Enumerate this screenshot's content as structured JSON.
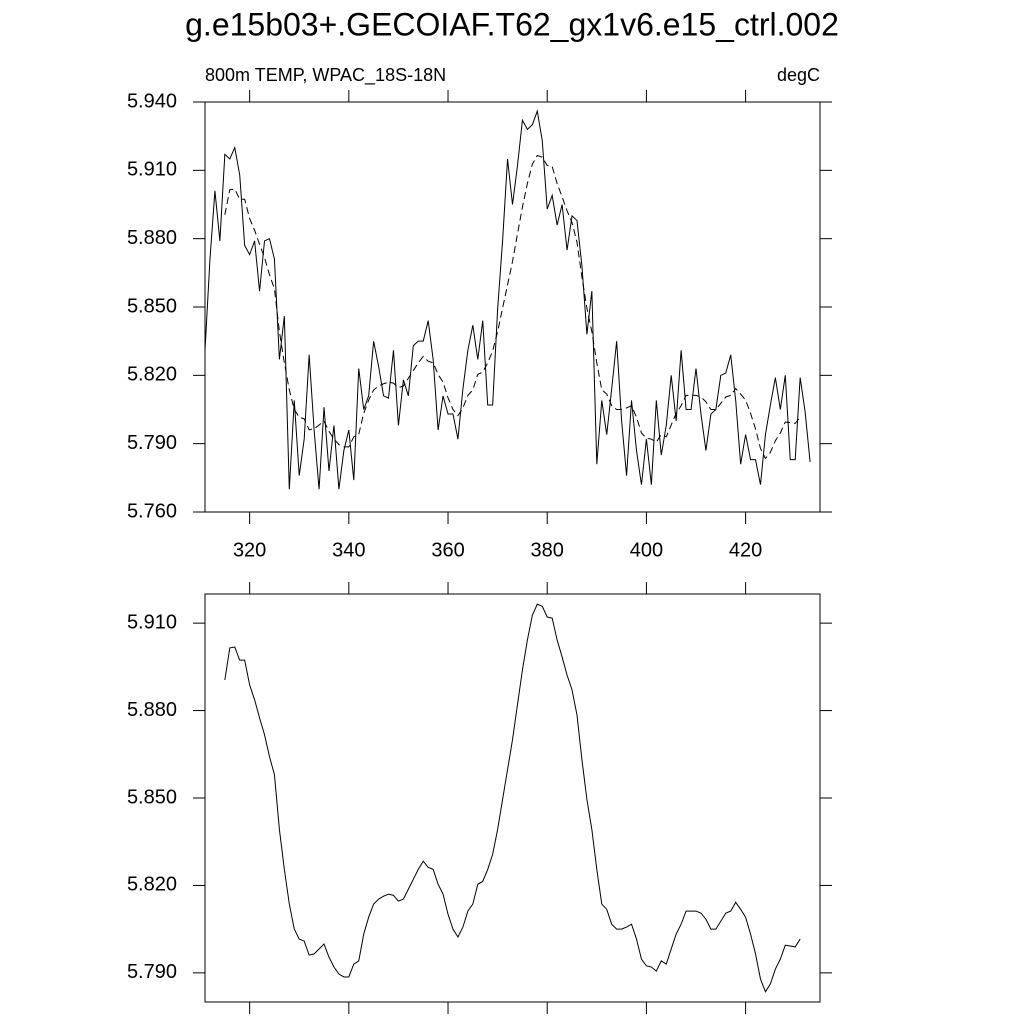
{
  "chart_data": [
    {
      "type": "line",
      "title": "g.e15b03+.GECOIAF.T62_gx1v6.e15_ctrl.002",
      "subtitle_left": "800m TEMP, WPAC_18S-18N",
      "subtitle_right": "degC",
      "xlim": [
        311,
        435
      ],
      "xticks": [
        320,
        340,
        360,
        380,
        400,
        420
      ],
      "xtick_labels": true,
      "ylim": [
        5.76,
        5.94
      ],
      "yticks": [
        {
          "value": 5.76,
          "label": "5.760"
        },
        {
          "value": 5.79,
          "label": "5.790"
        },
        {
          "value": 5.82,
          "label": "5.820"
        },
        {
          "value": 5.85,
          "label": "5.850"
        },
        {
          "value": 5.88,
          "label": "5.880"
        },
        {
          "value": 5.91,
          "label": "5.910"
        },
        {
          "value": 5.94,
          "label": "5.940"
        }
      ],
      "series": [
        {
          "color": "#000000",
          "style": "solid",
          "x": [
            311,
            312,
            313,
            314,
            315,
            316,
            317,
            318,
            319,
            320,
            321,
            322,
            323,
            324,
            325,
            326,
            327,
            328,
            329,
            330,
            331,
            332,
            333,
            334,
            335,
            336,
            337,
            338,
            339,
            340,
            341,
            342,
            343,
            344,
            345,
            346,
            347,
            348,
            349,
            350,
            351,
            352,
            353,
            354,
            355,
            356,
            357,
            358,
            359,
            360,
            361,
            362,
            363,
            364,
            365,
            366,
            367,
            368,
            369,
            370,
            371,
            372,
            373,
            374,
            375,
            376,
            377,
            378,
            379,
            380,
            381,
            382,
            383,
            384,
            385,
            386,
            387,
            388,
            389,
            390,
            391,
            392,
            393,
            394,
            395,
            396,
            397,
            398,
            399,
            400,
            401,
            402,
            403,
            404,
            405,
            406,
            407,
            408,
            409,
            410,
            411,
            412,
            413,
            414,
            415,
            416,
            417,
            418,
            419,
            420,
            421,
            422,
            423,
            424,
            425,
            426,
            427,
            428,
            429,
            430,
            431,
            432,
            433
          ],
          "values": [
            5.831,
            5.871,
            5.901,
            5.879,
            5.917,
            5.915,
            5.92,
            5.908,
            5.877,
            5.873,
            5.879,
            5.857,
            5.879,
            5.88,
            5.871,
            5.827,
            5.846,
            5.77,
            5.809,
            5.776,
            5.792,
            5.829,
            5.796,
            5.77,
            5.806,
            5.778,
            5.798,
            5.77,
            5.787,
            5.796,
            5.774,
            5.823,
            5.805,
            5.811,
            5.835,
            5.824,
            5.811,
            5.81,
            5.831,
            5.798,
            5.818,
            5.811,
            5.833,
            5.835,
            5.835,
            5.844,
            5.827,
            5.796,
            5.811,
            5.803,
            5.803,
            5.792,
            5.814,
            5.831,
            5.842,
            5.827,
            5.844,
            5.807,
            5.807,
            5.849,
            5.879,
            5.915,
            5.895,
            5.912,
            5.932,
            5.928,
            5.93,
            5.936,
            5.923,
            5.893,
            5.899,
            5.886,
            5.895,
            5.875,
            5.89,
            5.888,
            5.868,
            5.838,
            5.857,
            5.781,
            5.809,
            5.794,
            5.814,
            5.835,
            5.8,
            5.776,
            5.809,
            5.787,
            5.772,
            5.792,
            5.772,
            5.809,
            5.785,
            5.798,
            5.82,
            5.8,
            5.831,
            5.805,
            5.805,
            5.823,
            5.803,
            5.787,
            5.803,
            5.805,
            5.82,
            5.821,
            5.829,
            5.809,
            5.781,
            5.794,
            5.783,
            5.783,
            5.772,
            5.794,
            5.807,
            5.819,
            5.805,
            5.82,
            5.783,
            5.783,
            5.819,
            5.804,
            5.782
          ]
        },
        {
          "color": "#000000",
          "style": "dashed",
          "x": [
            315,
            316,
            317,
            318,
            319,
            320,
            321,
            322,
            323,
            324,
            325,
            326,
            327,
            328,
            329,
            330,
            331,
            332,
            333,
            334,
            335,
            336,
            337,
            338,
            339,
            340,
            341,
            342,
            343,
            344,
            345,
            346,
            347,
            348,
            349,
            350,
            351,
            352,
            353,
            354,
            355,
            356,
            357,
            358,
            359,
            360,
            361,
            362,
            363,
            364,
            365,
            366,
            367,
            368,
            369,
            370,
            371,
            372,
            373,
            374,
            375,
            376,
            377,
            378,
            379,
            380,
            381,
            382,
            383,
            384,
            385,
            386,
            387,
            388,
            389,
            390,
            391,
            392,
            393,
            394,
            395,
            396,
            397,
            398,
            399,
            400,
            401,
            402,
            403,
            404,
            405,
            406,
            407,
            408,
            409,
            410,
            411,
            412,
            413,
            414,
            415,
            416,
            417,
            418,
            419,
            420,
            421,
            422,
            423,
            424,
            425,
            426,
            427,
            428,
            429,
            430,
            431
          ],
          "values": [
            5.8905,
            5.9015,
            5.9018,
            5.8973,
            5.8973,
            5.8888,
            5.8837,
            5.8775,
            5.8717,
            5.8642,
            5.858,
            5.8392,
            5.8255,
            5.8136,
            5.805,
            5.8016,
            5.8009,
            5.7961,
            5.7965,
            5.7982,
            5.7999,
            5.7954,
            5.792,
            5.7896,
            5.7886,
            5.7886,
            5.793,
            5.7941,
            5.8033,
            5.8091,
            5.8136,
            5.8153,
            5.8163,
            5.817,
            5.8166,
            5.8146,
            5.8153,
            5.8187,
            5.8221,
            5.8255,
            5.8283,
            5.8262,
            5.8255,
            5.8204,
            5.817,
            5.8101,
            5.805,
            5.8023,
            5.8057,
            5.8112,
            5.8136,
            5.8204,
            5.8214,
            5.8255,
            5.8307,
            5.8392,
            5.8495,
            5.8597,
            5.87,
            5.882,
            5.8939,
            5.9042,
            5.9127,
            5.9165,
            5.9158,
            5.9121,
            5.9117,
            5.9042,
            5.8984,
            5.8922,
            5.8871,
            5.8785,
            5.8631,
            5.8495,
            5.8392,
            5.8255,
            5.8136,
            5.8118,
            5.8067,
            5.805,
            5.805,
            5.8057,
            5.8067,
            5.8016,
            5.7947,
            5.7924,
            5.792,
            5.7906,
            5.7941,
            5.793,
            5.7982,
            5.8033,
            5.8067,
            5.8112,
            5.8112,
            5.8112,
            5.8105,
            5.8084,
            5.805,
            5.805,
            5.8077,
            5.8105,
            5.8112,
            5.8142,
            5.8118,
            5.8091,
            5.8033,
            5.7965,
            5.7879,
            5.7835,
            5.7862,
            5.7913,
            5.7947,
            5.7995,
            5.7992,
            5.7989,
            5.8016
          ]
        }
      ]
    },
    {
      "type": "line",
      "xlim": [
        311,
        435
      ],
      "xticks": [
        320,
        340,
        360,
        380,
        400,
        420
      ],
      "xtick_labels": false,
      "ylim": [
        5.78,
        5.92
      ],
      "yticks": [
        {
          "value": 5.79,
          "label": "5.790"
        },
        {
          "value": 5.82,
          "label": "5.820"
        },
        {
          "value": 5.85,
          "label": "5.850"
        },
        {
          "value": 5.88,
          "label": "5.880"
        },
        {
          "value": 5.91,
          "label": "5.910"
        }
      ],
      "series": [
        {
          "color": "#000000",
          "style": "solid",
          "x": [
            315,
            316,
            317,
            318,
            319,
            320,
            321,
            322,
            323,
            324,
            325,
            326,
            327,
            328,
            329,
            330,
            331,
            332,
            333,
            334,
            335,
            336,
            337,
            338,
            339,
            340,
            341,
            342,
            343,
            344,
            345,
            346,
            347,
            348,
            349,
            350,
            351,
            352,
            353,
            354,
            355,
            356,
            357,
            358,
            359,
            360,
            361,
            362,
            363,
            364,
            365,
            366,
            367,
            368,
            369,
            370,
            371,
            372,
            373,
            374,
            375,
            376,
            377,
            378,
            379,
            380,
            381,
            382,
            383,
            384,
            385,
            386,
            387,
            388,
            389,
            390,
            391,
            392,
            393,
            394,
            395,
            396,
            397,
            398,
            399,
            400,
            401,
            402,
            403,
            404,
            405,
            406,
            407,
            408,
            409,
            410,
            411,
            412,
            413,
            414,
            415,
            416,
            417,
            418,
            419,
            420,
            421,
            422,
            423,
            424,
            425,
            426,
            427,
            428,
            429,
            430,
            431
          ],
          "values": [
            5.8905,
            5.9015,
            5.9018,
            5.8973,
            5.8973,
            5.8888,
            5.8837,
            5.8775,
            5.8717,
            5.8642,
            5.858,
            5.8392,
            5.8255,
            5.8136,
            5.805,
            5.8016,
            5.8009,
            5.7961,
            5.7965,
            5.7982,
            5.7999,
            5.7954,
            5.792,
            5.7896,
            5.7886,
            5.7886,
            5.793,
            5.7941,
            5.8033,
            5.8091,
            5.8136,
            5.8153,
            5.8163,
            5.817,
            5.8166,
            5.8146,
            5.8153,
            5.8187,
            5.8221,
            5.8255,
            5.8283,
            5.8262,
            5.8255,
            5.8204,
            5.817,
            5.8101,
            5.805,
            5.8023,
            5.8057,
            5.8112,
            5.8136,
            5.8204,
            5.8214,
            5.8255,
            5.8307,
            5.8392,
            5.8495,
            5.8597,
            5.87,
            5.882,
            5.8939,
            5.9042,
            5.9127,
            5.9165,
            5.9158,
            5.9121,
            5.9117,
            5.9042,
            5.8984,
            5.8922,
            5.8871,
            5.8785,
            5.8631,
            5.8495,
            5.8392,
            5.8255,
            5.8136,
            5.8118,
            5.8067,
            5.805,
            5.805,
            5.8057,
            5.8067,
            5.8016,
            5.7947,
            5.7924,
            5.792,
            5.7906,
            5.7941,
            5.793,
            5.7982,
            5.8033,
            5.8067,
            5.8112,
            5.8112,
            5.8112,
            5.8105,
            5.8084,
            5.805,
            5.805,
            5.8077,
            5.8105,
            5.8112,
            5.8142,
            5.8118,
            5.8091,
            5.8033,
            5.7965,
            5.7879,
            5.7835,
            5.7862,
            5.7913,
            5.7947,
            5.7995,
            5.7992,
            5.7989,
            5.8016
          ]
        }
      ]
    }
  ]
}
